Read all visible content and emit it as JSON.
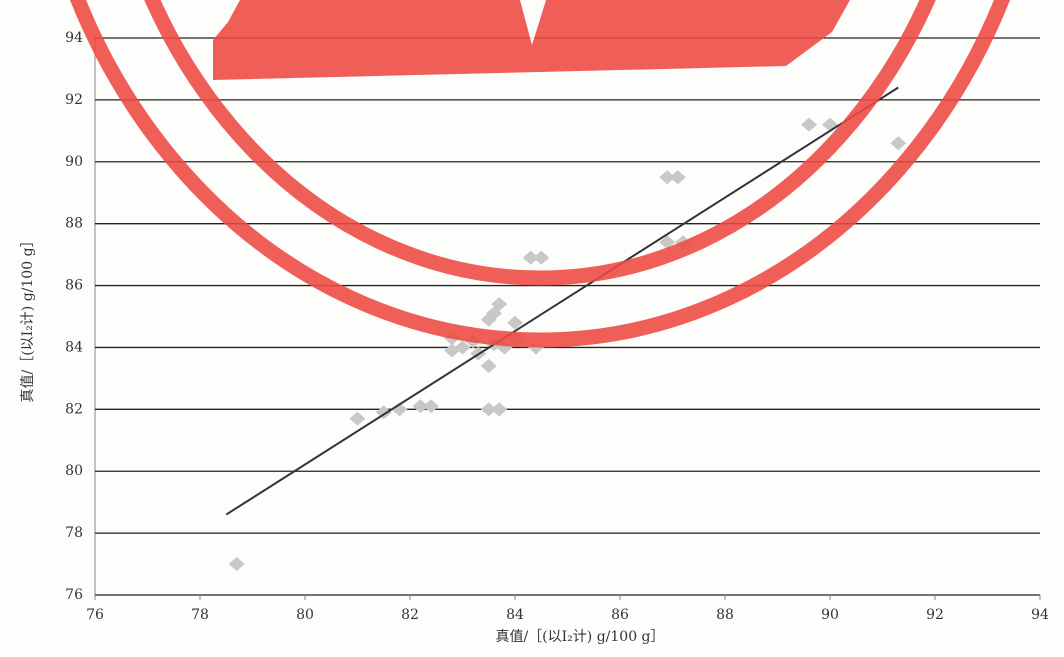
{
  "chart_data": {
    "type": "scatter",
    "x_label": "真值/［(以I₂计) g/100 g］",
    "y_label": "真值/［(以I₂计) g/100 g］",
    "x": [
      78.7,
      81.0,
      81.5,
      81.8,
      82.2,
      82.4,
      82.8,
      83.0,
      83.2,
      82.8,
      83.3,
      83.5,
      83.6,
      83.5,
      83.7,
      83.6,
      84.0,
      83.8,
      84.0,
      83.5,
      83.7,
      84.3,
      84.5,
      84.4,
      86.9,
      87.1,
      86.9,
      87.2,
      89.6,
      90.0,
      91.3
    ],
    "values": [
      77.0,
      81.7,
      81.9,
      82.0,
      82.1,
      82.1,
      84.3,
      84.0,
      84.2,
      83.9,
      83.8,
      83.4,
      84.1,
      84.9,
      85.4,
      85.1,
      84.8,
      84.0,
      84.3,
      82.0,
      82.0,
      86.9,
      86.9,
      84.0,
      89.5,
      89.5,
      87.4,
      87.4,
      91.2,
      91.2,
      90.6
    ],
    "color": "#c8c8c8",
    "fit_line": {
      "x": [
        78.5,
        91.3
      ],
      "values": [
        78.6,
        92.4
      ],
      "color": "#333333"
    },
    "xlim": [
      76,
      94
    ],
    "xticks": [
      76,
      78,
      80,
      82,
      84,
      86,
      88,
      90,
      92,
      94
    ],
    "ylim": [
      76,
      94
    ],
    "yticks": [
      76,
      78,
      80,
      82,
      84,
      86,
      88,
      90,
      92,
      94
    ],
    "grid": true
  }
}
